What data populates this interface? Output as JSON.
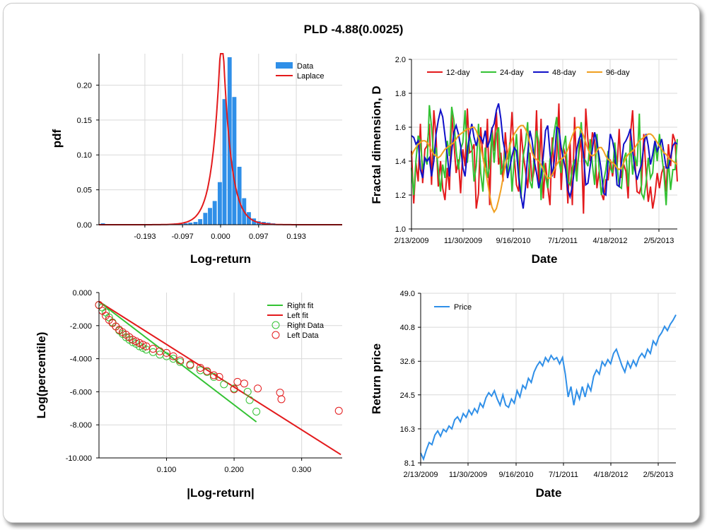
{
  "title": "PLD -4.88(0.0025)",
  "charts": {
    "hist": {
      "xlabel": "Log-return",
      "ylabel": "pdf",
      "xticks": [
        "-0.193",
        "-0.097",
        "0.000",
        "0.097",
        "0.193"
      ],
      "yticks": [
        "0.00",
        "0.05",
        "0.10",
        "0.15",
        "0.20"
      ],
      "legend": [
        "Data",
        "Laplace"
      ]
    },
    "fractal": {
      "xlabel": "Date",
      "ylabel": "Fractal dimension, D",
      "xticks": [
        "2/13/2009",
        "11/30/2009",
        "9/16/2010",
        "7/1/2011",
        "4/18/2012",
        "2/5/2013"
      ],
      "yticks": [
        "1.0",
        "1.2",
        "1.4",
        "1.6",
        "1.8",
        "2.0"
      ],
      "legend": [
        "12-day",
        "24-day",
        "48-day",
        "96-day"
      ]
    },
    "tail": {
      "xlabel": "|Log-return|",
      "ylabel": "Log(percentile)",
      "xticks": [
        "0.100",
        "0.200",
        "0.300"
      ],
      "yticks": [
        "0.000",
        "-2.000",
        "-4.000",
        "-6.000",
        "-8.000",
        "-10.000"
      ],
      "legend": [
        "Right fit",
        "Left fit",
        "Right Data",
        "Left Data"
      ]
    },
    "price": {
      "xlabel": "Date",
      "ylabel": "Return price",
      "xticks": [
        "2/13/2009",
        "11/30/2009",
        "9/16/2010",
        "7/1/2011",
        "4/18/2012",
        "2/5/2013"
      ],
      "yticks": [
        "8.1",
        "16.3",
        "24.5",
        "32.6",
        "40.8",
        "49.0"
      ],
      "legend": [
        "Price"
      ]
    }
  },
  "chart_data": [
    {
      "type": "bar",
      "title": "",
      "xlabel": "Log-return",
      "ylabel": "pdf",
      "xlim": [
        -0.31,
        0.31
      ],
      "ylim": [
        0,
        0.245
      ],
      "bin_width": 0.0124,
      "bins": [
        -0.3,
        -0.288,
        -0.275,
        -0.263,
        -0.25,
        -0.238,
        -0.226,
        -0.213,
        -0.201,
        -0.188,
        -0.176,
        -0.163,
        -0.151,
        -0.139,
        -0.126,
        -0.114,
        -0.101,
        -0.089,
        -0.077,
        -0.064,
        -0.052,
        -0.039,
        -0.027,
        -0.015,
        -0.002,
        0.01,
        0.023,
        0.035,
        0.048,
        0.06,
        0.072,
        0.085,
        0.097,
        0.11,
        0.122,
        0.134,
        0.147,
        0.159,
        0.172,
        0.184,
        0.196,
        0.209,
        0.221,
        0.234,
        0.246,
        0.259,
        0.271,
        0.283,
        0.296
      ],
      "values": [
        0.002,
        0.0,
        0.0,
        0.0,
        0.0,
        0.0,
        0.0,
        0.0,
        0.0,
        0.001,
        0.0,
        0.0,
        0.001,
        0.0,
        0.0,
        0.002,
        0.001,
        0.002,
        0.003,
        0.004,
        0.008,
        0.017,
        0.024,
        0.034,
        0.061,
        0.18,
        0.24,
        0.183,
        0.083,
        0.038,
        0.018,
        0.009,
        0.005,
        0.004,
        0.003,
        0.002,
        0.001,
        0.001,
        0.001,
        0.001,
        0.0,
        0.0,
        0.0,
        0.0,
        0.0,
        0.0,
        0.0,
        0.0,
        0.0
      ],
      "series": [
        {
          "name": "Data"
        },
        {
          "name": "Laplace",
          "mu": 0.003,
          "b": 0.0205
        }
      ]
    },
    {
      "type": "line",
      "title": "",
      "xlabel": "Date",
      "ylabel": "Fractal dimension, D",
      "ylim": [
        1.0,
        2.0
      ],
      "x_ticks": [
        "2/13/2009",
        "11/30/2009",
        "9/16/2010",
        "7/1/2011",
        "4/18/2012",
        "2/5/2013"
      ],
      "legend_position": "top",
      "series": [
        {
          "name": "12-day",
          "color": "#e31a1c",
          "values": [
            1.46,
            1.15,
            1.39,
            1.28,
            1.62,
            1.27,
            1.47,
            1.49,
            1.62,
            1.26,
            1.7,
            1.54,
            1.25,
            1.4,
            1.24,
            1.17,
            1.36,
            1.23,
            1.68,
            1.51,
            1.33,
            1.41,
            1.21,
            1.47,
            1.37,
            1.71,
            1.45,
            1.46,
            1.5,
            1.12,
            1.21,
            1.6,
            1.42,
            1.36,
            1.65,
            1.14,
            1.6,
            1.46,
            1.69,
            1.38,
            1.45,
            1.28,
            1.57,
            1.41,
            1.47,
            1.69,
            1.43,
            1.26,
            1.22,
            1.59,
            1.44,
            1.35,
            1.24,
            1.45,
            1.28,
            1.35,
            1.7,
            1.24,
            1.65,
            1.18,
            1.39,
            1.25,
            1.14,
            1.54,
            1.3,
            1.43,
            1.74,
            1.23,
            1.48,
            1.43,
            1.15,
            1.51,
            1.14,
            1.66,
            1.33,
            1.45,
            1.53,
            1.09,
            1.71,
            1.52,
            1.4,
            1.57,
            1.52,
            1.24,
            1.34,
            1.21,
            1.17,
            1.29,
            1.29,
            1.41,
            1.31,
            1.41,
            1.36,
            1.59,
            1.3,
            1.38,
            1.34,
            1.18,
            1.55,
            1.7,
            1.4,
            1.22,
            1.21,
            1.26,
            1.56,
            1.33,
            1.16,
            1.25,
            1.12,
            1.2,
            1.33,
            1.24,
            1.33,
            1.37,
            1.22,
            1.5,
            1.37,
            1.56,
            1.52,
            1.28
          ]
        },
        {
          "name": "24-day",
          "color": "#33c233",
          "values": [
            1.36,
            1.2,
            1.4,
            1.55,
            1.52,
            1.35,
            1.42,
            1.38,
            1.73,
            1.6,
            1.41,
            1.48,
            1.35,
            1.22,
            1.38,
            1.3,
            1.52,
            1.43,
            1.72,
            1.64,
            1.46,
            1.35,
            1.47,
            1.51,
            1.7,
            1.39,
            1.55,
            1.49,
            1.28,
            1.37,
            1.62,
            1.33,
            1.22,
            1.48,
            1.3,
            1.37,
            1.57,
            1.39,
            1.56,
            1.6,
            1.32,
            1.36,
            1.46,
            1.31,
            1.51,
            1.22,
            1.41,
            1.56,
            1.35,
            1.18,
            1.43,
            1.5,
            1.63,
            1.28,
            1.24,
            1.46,
            1.58,
            1.51,
            1.17,
            1.4,
            1.31,
            1.24,
            1.41,
            1.47,
            1.58,
            1.66,
            1.41,
            1.33,
            1.48,
            1.55,
            1.28,
            1.26,
            1.36,
            1.41,
            1.28,
            1.49,
            1.63,
            1.42,
            1.4,
            1.37,
            1.53,
            1.38,
            1.26,
            1.56,
            1.35,
            1.2,
            1.28,
            1.35,
            1.46,
            1.36,
            1.33,
            1.51,
            1.38,
            1.25,
            1.24,
            1.41,
            1.45,
            1.25,
            1.52,
            1.32,
            1.43,
            1.37,
            1.68,
            1.21,
            1.18,
            1.27,
            1.42,
            1.3,
            1.33,
            1.51,
            1.4,
            1.56,
            1.44,
            1.33,
            1.14,
            1.41,
            1.23,
            1.35,
            1.35,
            1.53
          ]
        },
        {
          "name": "48-day",
          "color": "#1010c8",
          "values": [
            1.55,
            1.54,
            1.5,
            1.52,
            1.35,
            1.3,
            1.42,
            1.4,
            1.42,
            1.31,
            1.4,
            1.56,
            1.64,
            1.7,
            1.66,
            1.55,
            1.44,
            1.31,
            1.46,
            1.57,
            1.61,
            1.56,
            1.49,
            1.36,
            1.31,
            1.46,
            1.55,
            1.62,
            1.54,
            1.49,
            1.55,
            1.54,
            1.51,
            1.58,
            1.48,
            1.52,
            1.59,
            1.62,
            1.7,
            1.74,
            1.65,
            1.52,
            1.45,
            1.3,
            1.36,
            1.43,
            1.48,
            1.46,
            1.3,
            1.2,
            1.12,
            1.24,
            1.44,
            1.58,
            1.52,
            1.4,
            1.33,
            1.24,
            1.31,
            1.43,
            1.58,
            1.61,
            1.45,
            1.31,
            1.41,
            1.6,
            1.59,
            1.48,
            1.41,
            1.35,
            1.23,
            1.19,
            1.25,
            1.36,
            1.47,
            1.53,
            1.56,
            1.44,
            1.26,
            1.27,
            1.37,
            1.47,
            1.57,
            1.51,
            1.43,
            1.34,
            1.21,
            1.2,
            1.41,
            1.56,
            1.52,
            1.45,
            1.26,
            1.25,
            1.39,
            1.5,
            1.52,
            1.55,
            1.59,
            1.46,
            1.35,
            1.29,
            1.34,
            1.38,
            1.49,
            1.56,
            1.49,
            1.38,
            1.44,
            1.52,
            1.46,
            1.49,
            1.53,
            1.45,
            1.36,
            1.36,
            1.42,
            1.49,
            1.51,
            1.5
          ]
        },
        {
          "name": "96-day",
          "color": "#f0a020",
          "values": [
            1.43,
            1.46,
            1.48,
            1.5,
            1.51,
            1.52,
            1.52,
            1.51,
            1.49,
            1.46,
            1.44,
            1.43,
            1.42,
            1.43,
            1.45,
            1.47,
            1.48,
            1.49,
            1.5,
            1.51,
            1.53,
            1.55,
            1.56,
            1.57,
            1.58,
            1.59,
            1.59,
            1.6,
            1.6,
            1.58,
            1.54,
            1.48,
            1.42,
            1.35,
            1.28,
            1.2,
            1.13,
            1.1,
            1.12,
            1.17,
            1.23,
            1.3,
            1.37,
            1.44,
            1.49,
            1.53,
            1.56,
            1.58,
            1.6,
            1.61,
            1.61,
            1.59,
            1.56,
            1.5,
            1.45,
            1.42,
            1.41,
            1.4,
            1.38,
            1.35,
            1.32,
            1.3,
            1.3,
            1.32,
            1.35,
            1.38,
            1.4,
            1.41,
            1.42,
            1.44,
            1.47,
            1.51,
            1.55,
            1.58,
            1.6,
            1.6,
            1.58,
            1.55,
            1.51,
            1.47,
            1.44,
            1.43,
            1.44,
            1.46,
            1.48,
            1.48,
            1.46,
            1.43,
            1.41,
            1.4,
            1.39,
            1.38,
            1.36,
            1.35,
            1.36,
            1.39,
            1.42,
            1.44,
            1.45,
            1.46,
            1.48,
            1.5,
            1.52,
            1.53,
            1.54,
            1.55,
            1.56,
            1.56,
            1.55,
            1.53,
            1.51,
            1.49,
            1.47,
            1.45,
            1.44,
            1.42,
            1.41,
            1.4,
            1.39,
            1.38
          ]
        }
      ]
    },
    {
      "type": "scatter",
      "title": "",
      "xlabel": "|Log-return|",
      "ylabel": "Log(percentile)",
      "xlim": [
        0,
        0.36
      ],
      "ylim": [
        -10,
        0
      ],
      "series": [
        {
          "name": "Right fit",
          "color": "#33c233",
          "x": [
            0.0,
            0.233
          ],
          "y": [
            -0.55,
            -7.82
          ]
        },
        {
          "name": "Left fit",
          "color": "#e31a1c",
          "x": [
            0.0,
            0.358
          ],
          "y": [
            -0.55,
            -9.8
          ]
        },
        {
          "name": "Right Data",
          "color": "#33c233",
          "x": [
            0.0,
            0.005,
            0.01,
            0.015,
            0.02,
            0.025,
            0.03,
            0.035,
            0.04,
            0.045,
            0.05,
            0.055,
            0.06,
            0.065,
            0.07,
            0.08,
            0.09,
            0.1,
            0.11,
            0.12,
            0.135,
            0.15,
            0.16,
            0.17,
            0.185,
            0.2,
            0.22,
            0.223,
            0.233
          ],
          "y": [
            -0.75,
            -0.9,
            -1.2,
            -1.5,
            -1.8,
            -2.05,
            -2.3,
            -2.5,
            -2.7,
            -2.85,
            -3.0,
            -3.1,
            -3.25,
            -3.35,
            -3.45,
            -3.6,
            -3.75,
            -3.85,
            -4.0,
            -4.2,
            -4.4,
            -4.7,
            -4.8,
            -5.1,
            -5.55,
            -5.8,
            -6.0,
            -6.5,
            -7.2
          ]
        },
        {
          "name": "Left Data",
          "color": "#e31a1c",
          "x": [
            0.0,
            0.005,
            0.01,
            0.015,
            0.02,
            0.025,
            0.03,
            0.035,
            0.04,
            0.045,
            0.05,
            0.055,
            0.06,
            0.065,
            0.07,
            0.08,
            0.09,
            0.1,
            0.11,
            0.12,
            0.135,
            0.15,
            0.16,
            0.17,
            0.178,
            0.2,
            0.215,
            0.205,
            0.235,
            0.268,
            0.27,
            0.355
          ],
          "y": [
            -0.75,
            -1.1,
            -1.4,
            -1.65,
            -1.85,
            -2.05,
            -2.25,
            -2.4,
            -2.55,
            -2.7,
            -2.85,
            -2.95,
            -3.05,
            -3.15,
            -3.25,
            -3.4,
            -3.55,
            -3.65,
            -3.85,
            -4.1,
            -4.35,
            -4.55,
            -4.75,
            -5.0,
            -5.1,
            -5.85,
            -5.5,
            -5.4,
            -5.8,
            -6.05,
            -6.45,
            -7.15
          ]
        }
      ]
    },
    {
      "type": "line",
      "title": "",
      "xlabel": "Date",
      "ylabel": "Return price",
      "ylim": [
        8.1,
        49.0
      ],
      "x_ticks": [
        "2/13/2009",
        "11/30/2009",
        "9/16/2010",
        "7/1/2011",
        "4/18/2012",
        "2/5/2013"
      ],
      "series": [
        {
          "name": "Price",
          "color": "#2f8fe8",
          "values": [
            10.5,
            9.0,
            11.2,
            13.0,
            12.5,
            14.8,
            15.8,
            14.5,
            16.2,
            15.6,
            17.0,
            16.3,
            18.5,
            19.2,
            18.0,
            20.0,
            19.1,
            20.8,
            19.7,
            21.2,
            20.2,
            22.5,
            21.5,
            23.8,
            25.0,
            24.2,
            25.5,
            23.5,
            22.0,
            24.5,
            22.0,
            21.5,
            23.5,
            22.5,
            25.5,
            24.0,
            26.8,
            26.0,
            28.5,
            27.5,
            30.0,
            31.5,
            32.5,
            31.5,
            33.5,
            32.5,
            34.0,
            33.0,
            33.5,
            32.0,
            33.5,
            29.5,
            24.0,
            26.5,
            22.0,
            25.5,
            23.5,
            26.5,
            24.0,
            27.0,
            25.5,
            29.0,
            30.5,
            29.5,
            32.5,
            31.5,
            33.0,
            32.0,
            34.5,
            35.5,
            33.5,
            31.5,
            30.0,
            32.5,
            31.0,
            32.8,
            31.5,
            33.5,
            34.5,
            33.5,
            35.5,
            34.5,
            37.5,
            36.5,
            38.5,
            39.5,
            41.0,
            40.0,
            41.5,
            42.5,
            43.8
          ]
        }
      ]
    }
  ]
}
